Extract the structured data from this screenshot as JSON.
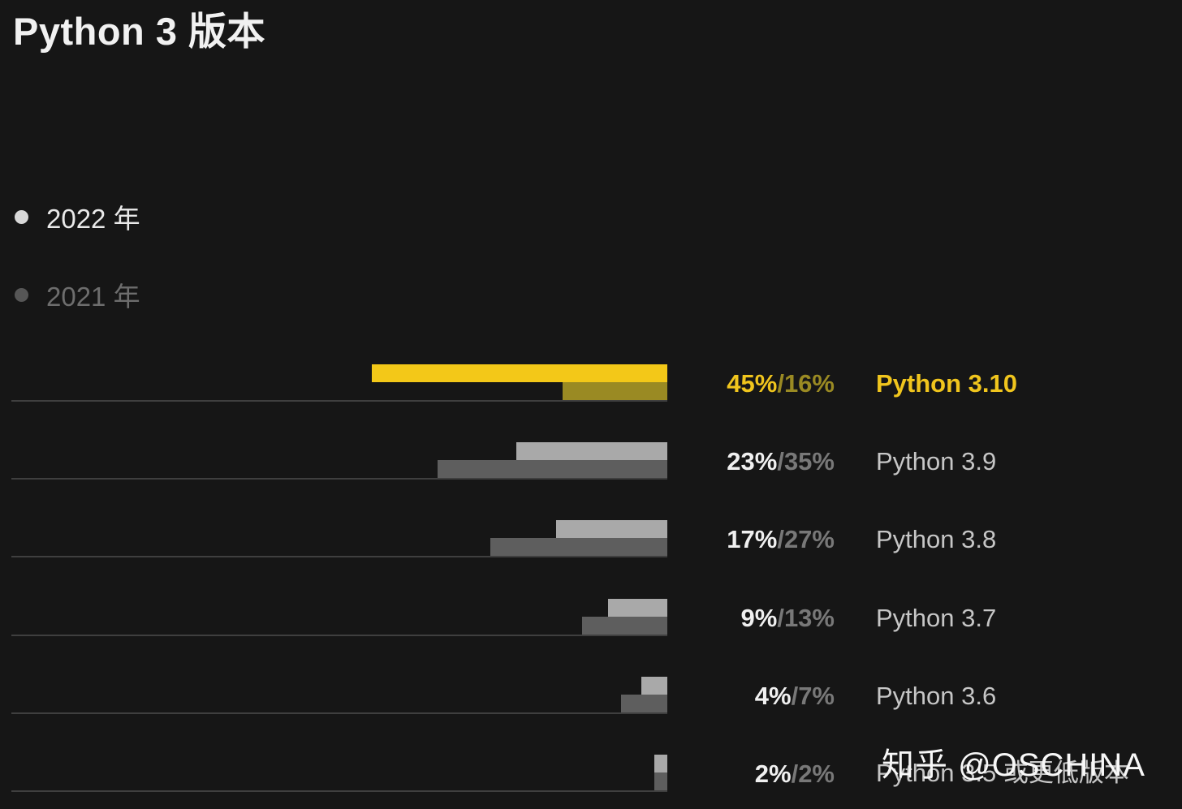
{
  "page": {
    "title": "Python 3 版本",
    "watermark": "知乎 @OSCHINA",
    "background": "#161616"
  },
  "legend": {
    "items": [
      {
        "label": "2022 年",
        "text_color": "#e9e9e9",
        "dot_color": "#d8d8d8"
      },
      {
        "label": "2021 年",
        "text_color": "#6d6d6d",
        "dot_color": "#565656"
      }
    ]
  },
  "chart_data": {
    "type": "bar",
    "orientation": "horizontal",
    "bar_alignment": "right",
    "title": "Python 3 版本",
    "categories": [
      "Python 3.10",
      "Python 3.9",
      "Python 3.8",
      "Python 3.7",
      "Python 3.6",
      "Python 3.5 或更低版本"
    ],
    "series": [
      {
        "name": "2022 年",
        "values": [
          45,
          23,
          17,
          9,
          4,
          2
        ]
      },
      {
        "name": "2021 年",
        "values": [
          16,
          35,
          27,
          13,
          7,
          2
        ]
      }
    ],
    "value_labels": [
      "45%/16%",
      "23%/35%",
      "17%/27%",
      "9%/13%",
      "4%/7%",
      "2%/2%"
    ],
    "value_suffix": "%",
    "xlim": [
      0,
      100
    ],
    "grid": false,
    "legend_position": "top-left",
    "highlight_index": 0,
    "colors": {
      "series_2022_bar": "#a9a9a9",
      "series_2021_bar": "#5e5e5e",
      "highlight_2022_bar": "#f3c818",
      "highlight_2021_bar": "#9a8a23",
      "value_2022_text": "#f0f0f0",
      "value_2021_text": "#787878",
      "highlight_value_2022_text": "#f0c51d",
      "highlight_value_2021_text": "#9a8a23",
      "category_text": "#c6c6c6",
      "highlight_category_text": "#f0c51d",
      "baseline": "#3f3f3f"
    }
  }
}
